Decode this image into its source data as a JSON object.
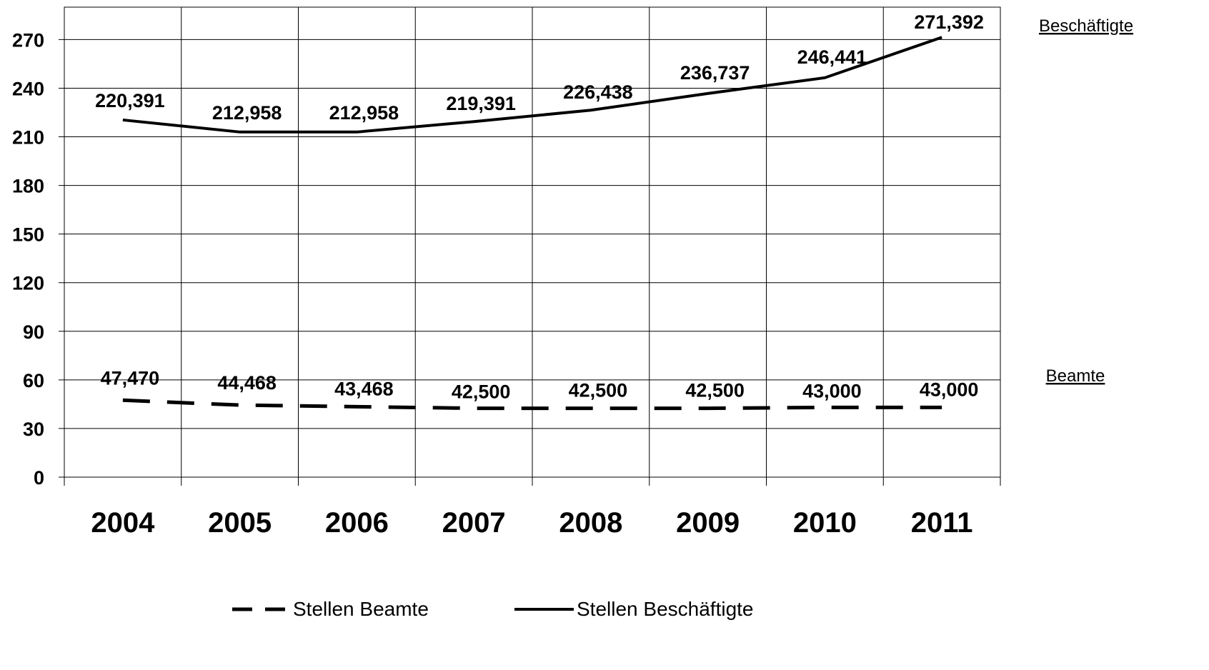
{
  "chart_data": {
    "type": "line",
    "categories": [
      "2004",
      "2005",
      "2006",
      "2007",
      "2008",
      "2009",
      "2010",
      "2011"
    ],
    "y_ticks": [
      "0",
      "30",
      "60",
      "90",
      "120",
      "150",
      "180",
      "210",
      "240",
      "270"
    ],
    "ylim": [
      0,
      290
    ],
    "grid": true,
    "legend_position": "bottom",
    "series": [
      {
        "name": "Stellen Beamte",
        "side_label": "Beamte",
        "style": "dashed",
        "values": [
          47.47,
          44.468,
          43.468,
          42.5,
          42.5,
          42.5,
          43.0,
          43.0
        ],
        "labels": [
          "47,470",
          "44,468",
          "43,468",
          "42,500",
          "42,500",
          "42,500",
          "43,000",
          "43,000"
        ]
      },
      {
        "name": "Stellen Beschäftigte",
        "side_label": "Beschäftigte",
        "style": "solid",
        "values": [
          220.391,
          212.958,
          212.958,
          219.391,
          226.438,
          236.737,
          246.441,
          271.392
        ],
        "labels": [
          "220,391",
          "212,958",
          "212,958",
          "219,391",
          "226,438",
          "236,737",
          "246,441",
          "271,392"
        ]
      }
    ],
    "colors": {
      "line": "#000000",
      "grid": "#000000",
      "background": "#ffffff"
    }
  }
}
